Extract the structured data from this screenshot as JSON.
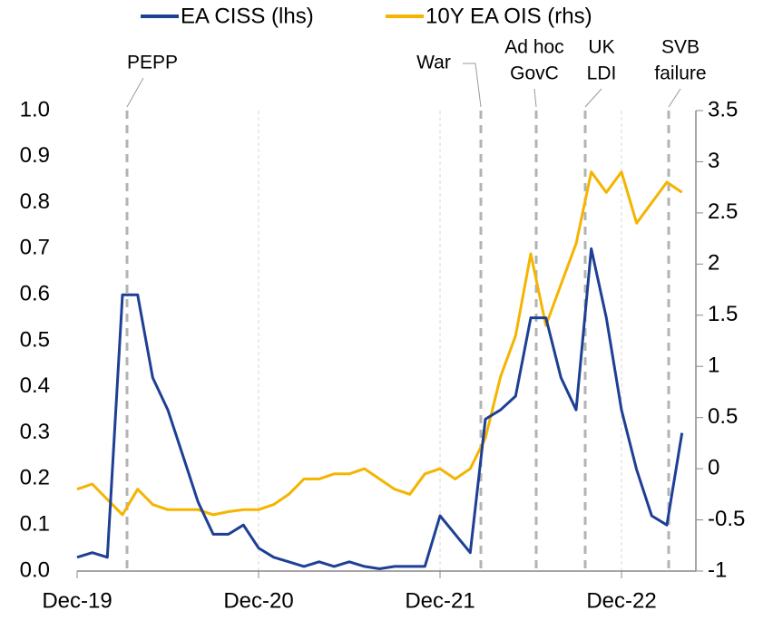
{
  "chart_data": {
    "type": "line",
    "categories": [
      "Dec-19",
      null,
      null,
      null,
      null,
      null,
      null,
      null,
      null,
      null,
      null,
      null,
      "Dec-20",
      null,
      null,
      null,
      null,
      null,
      null,
      null,
      null,
      null,
      null,
      null,
      "Dec-21",
      null,
      null,
      null,
      null,
      null,
      null,
      null,
      null,
      null,
      null,
      null,
      "Dec-22",
      null,
      null,
      null,
      null
    ],
    "series": [
      {
        "name": "EA CISS (lhs)",
        "color": "#1d3f94",
        "axis": "y",
        "values": [
          0.03,
          0.04,
          0.03,
          0.6,
          0.6,
          0.42,
          0.35,
          0.25,
          0.15,
          0.08,
          0.08,
          0.1,
          0.05,
          0.03,
          0.02,
          0.01,
          0.02,
          0.01,
          0.02,
          0.01,
          0.005,
          0.01,
          0.01,
          0.01,
          0.12,
          0.08,
          0.04,
          0.33,
          0.35,
          0.38,
          0.55,
          0.55,
          0.42,
          0.35,
          0.7,
          0.55,
          0.35,
          0.22,
          0.12,
          0.1,
          0.3
        ]
      },
      {
        "name": "10Y EA OIS (rhs)",
        "color": "#f5b400",
        "axis": "y2",
        "values": [
          -0.2,
          -0.15,
          -0.3,
          -0.45,
          -0.2,
          -0.35,
          -0.4,
          -0.4,
          -0.4,
          -0.45,
          -0.42,
          -0.4,
          -0.4,
          -0.35,
          -0.25,
          -0.1,
          -0.1,
          -0.05,
          -0.05,
          0.0,
          -0.1,
          -0.2,
          -0.25,
          -0.05,
          0.0,
          -0.1,
          0.0,
          0.3,
          0.9,
          1.3,
          2.1,
          1.4,
          1.8,
          2.2,
          2.9,
          2.7,
          2.9,
          2.4,
          2.6,
          2.8,
          2.7
        ]
      }
    ],
    "ylim": [
      0,
      1
    ],
    "yticks": [
      {
        "value": 0,
        "label": "0.0"
      },
      0.1,
      0.2,
      0.3,
      0.4,
      0.5,
      0.6,
      0.7,
      0.8,
      0.9,
      {
        "value": 1,
        "label": "1.0"
      }
    ],
    "y2lim": [
      -1,
      3.5
    ],
    "y2ticks": [
      -1,
      -0.5,
      0,
      0.5,
      1,
      1.5,
      2,
      2.5,
      3,
      3.5
    ],
    "grid": true,
    "legend": "top",
    "annotations": [
      {
        "text": [
          "PEPP"
        ]
      },
      {
        "text": [
          "War"
        ]
      },
      {
        "text": [
          "Ad hoc",
          "GovC"
        ]
      },
      {
        "text": [
          "UK",
          "LDI"
        ]
      },
      {
        "text": [
          "SVB",
          "failure"
        ]
      }
    ]
  }
}
